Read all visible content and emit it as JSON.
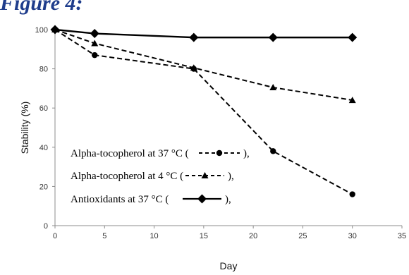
{
  "caption": "Figure 4:",
  "chart_data": {
    "type": "line",
    "title": "",
    "xlabel": "Day",
    "ylabel": "Stability (%)",
    "xlim": [
      0,
      35
    ],
    "ylim": [
      0,
      100
    ],
    "x_ticks": [
      0,
      5,
      10,
      15,
      20,
      25,
      30,
      35
    ],
    "y_ticks": [
      0,
      20,
      40,
      60,
      80,
      100
    ],
    "grid": false,
    "legend_position": "bottom-left",
    "series": [
      {
        "name": "Alpha-tocopherol at 37 °C (",
        "name_suffix": "),",
        "marker": "circle",
        "line_style": "dashed",
        "color": "#000000",
        "x": [
          0,
          4,
          14,
          22,
          30
        ],
        "y": [
          100,
          87,
          80,
          38,
          16
        ]
      },
      {
        "name": "Alpha-tocopherol at 4 °C  (",
        "name_suffix": "),",
        "marker": "triangle",
        "line_style": "dashed",
        "color": "#000000",
        "x": [
          0,
          4,
          14,
          22,
          30
        ],
        "y": [
          100,
          93,
          80.5,
          70.5,
          64
        ]
      },
      {
        "name": "Antioxidants at 37 °C (",
        "name_suffix": "),",
        "marker": "diamond",
        "line_style": "solid",
        "color": "#000000",
        "x": [
          0,
          4,
          14,
          22,
          30
        ],
        "y": [
          100,
          98,
          96,
          96,
          96
        ]
      }
    ]
  }
}
